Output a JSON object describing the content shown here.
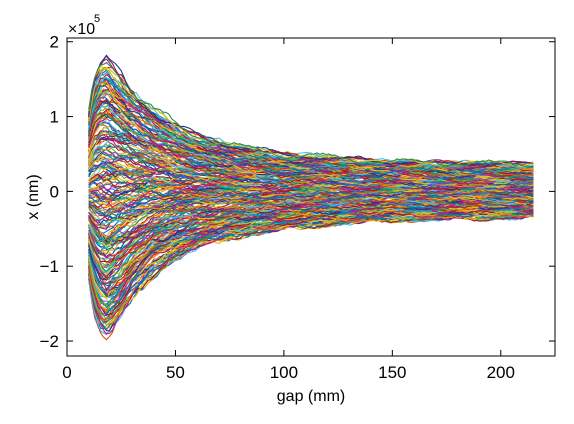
{
  "chart_data": {
    "type": "line",
    "xlabel": "gap (mm)",
    "ylabel": "x (nm)",
    "y_scale_multiplier": "×10",
    "y_scale_exponent": "5",
    "xlim": [
      0,
      225
    ],
    "ylim": [
      -2.2,
      2.05
    ],
    "x_ticks": [
      0,
      50,
      100,
      150,
      200
    ],
    "x_tick_labels": [
      "0",
      "50",
      "100",
      "150",
      "200"
    ],
    "y_ticks": [
      -2,
      -1,
      0,
      1,
      2
    ],
    "y_tick_labels": [
      "−2",
      "−1",
      "0",
      "1",
      "2"
    ],
    "grid": false,
    "legend": "none",
    "series_count": 250,
    "x_range": [
      10,
      215
    ],
    "envelope": {
      "description_units": "×10^5 nm",
      "x": [
        10,
        12,
        15,
        18,
        20,
        25,
        30,
        40,
        50,
        60,
        75,
        100,
        125,
        150,
        175,
        200,
        215
      ],
      "upper": [
        1.1,
        1.5,
        1.75,
        1.82,
        1.78,
        1.6,
        1.4,
        1.12,
        0.92,
        0.78,
        0.65,
        0.52,
        0.46,
        0.42,
        0.4,
        0.39,
        0.38
      ],
      "lower": [
        -1.2,
        -1.6,
        -1.9,
        -2.0,
        -1.95,
        -1.75,
        -1.5,
        -1.15,
        -0.92,
        -0.78,
        -0.64,
        -0.52,
        -0.45,
        -0.4,
        -0.38,
        -0.37,
        -0.36
      ]
    },
    "colors": [
      "#0072BD",
      "#D95319",
      "#EDB120",
      "#7E2F8E",
      "#77AC30",
      "#4DBEEE",
      "#A2142F",
      "#1F3A93",
      "#E6C619",
      "#2E8B57",
      "#C71585",
      "#008080",
      "#FF8C00",
      "#6A5ACD",
      "#B22222",
      "#20B2AA"
    ]
  }
}
